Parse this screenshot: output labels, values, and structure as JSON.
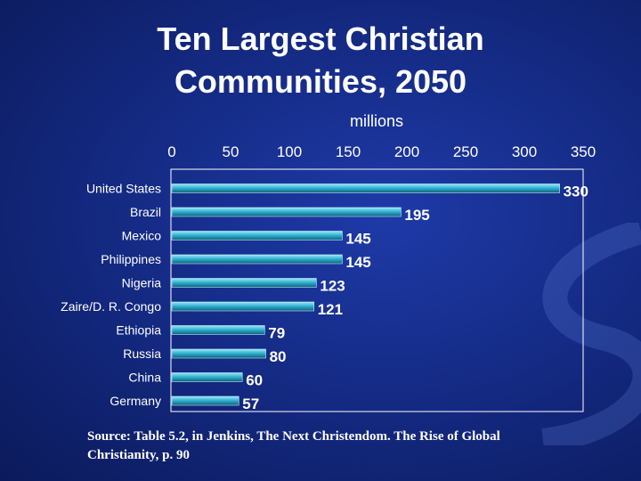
{
  "slide": {
    "title_line1": "Ten Largest Christian",
    "title_line2": "Communities, 2050",
    "source_line1": "Source: Table 5.2, in Jenkins, The Next Christendom. The Rise of Global",
    "source_line2": "Christianity, p. 90"
  },
  "chart_data": {
    "type": "bar",
    "orientation": "horizontal",
    "title": "",
    "xlabel": "millions",
    "ylabel": "",
    "xlim": [
      0,
      350
    ],
    "xticks": [
      0,
      50,
      100,
      150,
      200,
      250,
      300,
      350
    ],
    "tick_labels": [
      "0",
      "50",
      "100",
      "150",
      "200",
      "250",
      "300",
      "350"
    ],
    "axis_position": "top",
    "grid": false,
    "categories": [
      "United States",
      "Brazil",
      "Mexico",
      "Philippines",
      "Nigeria",
      "Zaire/D. R. Congo",
      "Ethiopia",
      "Russia",
      "China",
      "Germany"
    ],
    "values": [
      330,
      195,
      145,
      145,
      123,
      121,
      79,
      80,
      60,
      57
    ],
    "data_labels": [
      "330",
      "195",
      "145",
      "145",
      "123",
      "121",
      "79",
      "80",
      "60",
      "57"
    ]
  },
  "colors": {
    "bar_fill": "#32b4d4",
    "bar_top": "#9fe6f5",
    "bar_bottom": "#0d5f78",
    "frame": "#ffffff",
    "text": "#ffffff"
  }
}
